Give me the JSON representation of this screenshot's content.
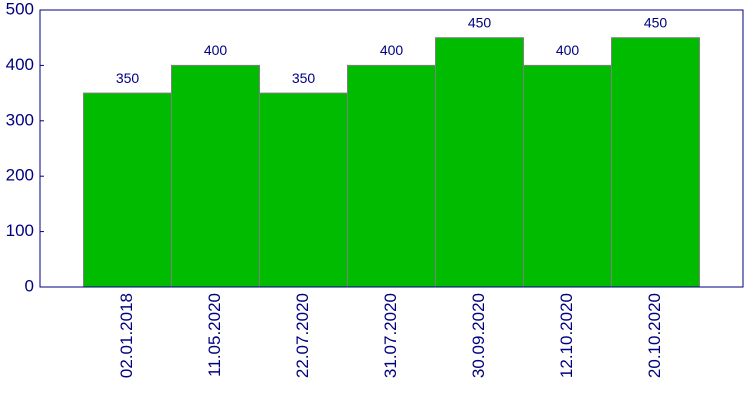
{
  "chart_data": {
    "type": "bar",
    "categories": [
      "02.01.2018",
      "11.05.2020",
      "22.07.2020",
      "31.07.2020",
      "30.09.2020",
      "12.10.2020",
      "20.10.2020"
    ],
    "values": [
      350,
      400,
      350,
      400,
      450,
      400,
      450
    ],
    "color": "#00bb00",
    "ylim": [
      0,
      500
    ],
    "yticks": [
      0,
      100,
      200,
      300,
      400,
      500
    ],
    "grid": false,
    "data_labels": true
  }
}
